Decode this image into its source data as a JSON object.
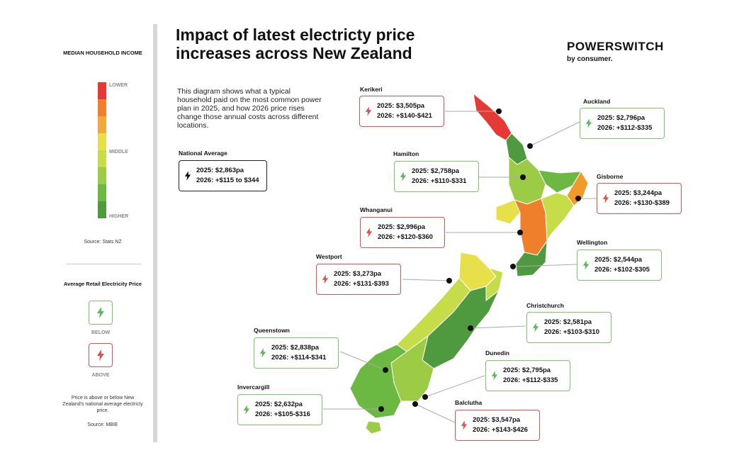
{
  "title": "Impact of latest electricty price increases across New Zealand",
  "brand": {
    "name": "POWERSWITCH",
    "sub": "by consumer."
  },
  "intro": "This diagram shows what a typical household paid on the most common power plan in 2025, and how 2026 price rises change those annual costs across different locations.",
  "national_average": {
    "label": "National Average",
    "line1": "2025: $2,863pa",
    "line2": "2026: +$115 to $344"
  },
  "sidebar": {
    "income_title": "MEDIAN HOUSEHOLD INCOME",
    "scale_labels": {
      "lower": "LOWER",
      "middle": "MIDDLE",
      "higher": "HIGHER"
    },
    "scale_colors": [
      "#e53935",
      "#ef7f2a",
      "#f2a93b",
      "#e8e04a",
      "#c6dc48",
      "#9ccc45",
      "#6bb843",
      "#4f9a3e"
    ],
    "income_source": "Source: Stats NZ",
    "price_title": "Average Retail Electricity Price",
    "below_label": "BELOW",
    "above_label": "ABOVE",
    "note": "Price is above or below New Zealand's national average electricty price.",
    "price_source": "Source: MBIE"
  },
  "colors": {
    "green": "#7bc46b",
    "red": "#d9534f",
    "bolt_green": "#5cb85c",
    "bolt_red": "#d9534f"
  },
  "locations": [
    {
      "name": "Kerikeri",
      "line1": "2025: $3,505pa",
      "line2": "2026: +$140-$421",
      "status": "above"
    },
    {
      "name": "Auckland",
      "line1": "2025: $2,796pa",
      "line2": "2026: +$112-$335",
      "status": "below"
    },
    {
      "name": "Hamilton",
      "line1": "2025: $2,758pa",
      "line2": "2026: +$110-$331",
      "status": "below"
    },
    {
      "name": "Gisborne",
      "line1": "2025: $3,244pa",
      "line2": "2026: +$130-$389",
      "status": "above"
    },
    {
      "name": "Whanganui",
      "line1": "2025: $2,996pa",
      "line2": "2026: +$120-$360",
      "status": "above"
    },
    {
      "name": "Wellington",
      "line1": "2025: $2,544pa",
      "line2": "2026: +$102-$305",
      "status": "below"
    },
    {
      "name": "Westport",
      "line1": "2025: $3,273pa",
      "line2": "2026: +$131-$393",
      "status": "above"
    },
    {
      "name": "Christchurch",
      "line1": "2025: $2,581pa",
      "line2": "2026: +$103-$310",
      "status": "below"
    },
    {
      "name": "Queenstown",
      "line1": "2025: $2,838pa",
      "line2": "2026: +$114-$341",
      "status": "below"
    },
    {
      "name": "Dunedin",
      "line1": "2025: $2,795pa",
      "line2": "2026: +$112-$335",
      "status": "below"
    },
    {
      "name": "Invercargill",
      "line1": "2025: $2,632pa",
      "line2": "2026: +$105-$316",
      "status": "below"
    },
    {
      "name": "Balclutha",
      "line1": "2025: $3,547pa",
      "line2": "2026: +$143-$426",
      "status": "above"
    }
  ]
}
